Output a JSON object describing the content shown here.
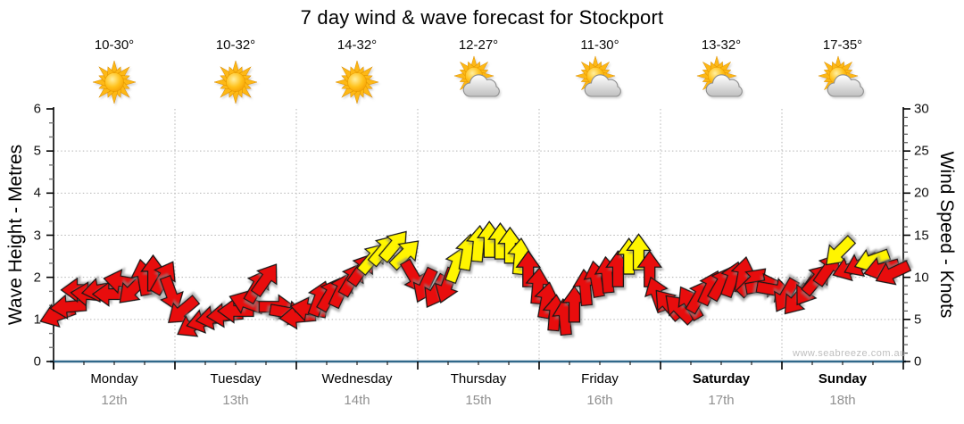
{
  "title": "7 day wind & wave forecast for Stockport",
  "watermark": "www.seabreeze.com.au",
  "days": [
    {
      "name": "Monday",
      "date": "12th",
      "temp": "10-30°",
      "icon": "sun",
      "bold": false
    },
    {
      "name": "Tuesday",
      "date": "13th",
      "temp": "10-32°",
      "icon": "sun",
      "bold": false
    },
    {
      "name": "Wednesday",
      "date": "14th",
      "temp": "14-32°",
      "icon": "sun",
      "bold": false
    },
    {
      "name": "Thursday",
      "date": "15th",
      "temp": "12-27°",
      "icon": "sun-cloud",
      "bold": false
    },
    {
      "name": "Friday",
      "date": "16th",
      "temp": "11-30°",
      "icon": "sun-cloud",
      "bold": false
    },
    {
      "name": "Saturday",
      "date": "17th",
      "temp": "13-32°",
      "icon": "sun-cloud",
      "bold": true
    },
    {
      "name": "Sunday",
      "date": "18th",
      "temp": "17-35°",
      "icon": "sun-cloud",
      "bold": true
    }
  ],
  "left_axis": {
    "label": "Wave Height - Metres",
    "range": [
      0,
      6
    ],
    "major_ticks": [
      0,
      1,
      2,
      3,
      4,
      5,
      6
    ]
  },
  "right_axis": {
    "label": "Wind Speed - Knots",
    "range": [
      0,
      30
    ],
    "major_ticks": [
      0,
      5,
      10,
      15,
      20,
      25,
      30
    ]
  },
  "colors": {
    "arrow_red": "#e8100c",
    "arrow_yellow": "#fff500",
    "arrow_outline": "#141414",
    "baseline_blue": "#31688a",
    "axis_black": "#000000",
    "grid_gray": "#b5b5b5",
    "date_gray": "#909090",
    "watermark_gray": "#bebebe"
  },
  "chart_data": {
    "type": "wind_arrow_timeseries",
    "x_unit": "days (0 = start Monday 12th, 7 = end Sunday 18th)",
    "y_unit": "knots (right axis; left axis metres = knots/5)",
    "ylim_knots": [
      0,
      30
    ],
    "ylim_metres": [
      0,
      6
    ],
    "grid": "dotted horizontal each metre, dotted vertical each day boundary",
    "color_coding": {
      "r": "red arrows ~<12 kn",
      "y": "yellow arrows ~12-15 kn"
    },
    "dir_note": "dir = direction arrow points, degrees clockwise from up/north",
    "points": [
      {
        "t": 0.03,
        "kn": 5.5,
        "dir": 250,
        "c": "r"
      },
      {
        "t": 0.12,
        "kn": 6.5,
        "dir": 265,
        "c": "r"
      },
      {
        "t": 0.21,
        "kn": 8.5,
        "dir": 270,
        "c": "r"
      },
      {
        "t": 0.29,
        "kn": 8.0,
        "dir": 275,
        "c": "r"
      },
      {
        "t": 0.38,
        "kn": 8.5,
        "dir": 260,
        "c": "r"
      },
      {
        "t": 0.47,
        "kn": 8.0,
        "dir": 270,
        "c": "r"
      },
      {
        "t": 0.56,
        "kn": 9.5,
        "dir": 280,
        "c": "r"
      },
      {
        "t": 0.65,
        "kn": 8.5,
        "dir": 225,
        "c": "r"
      },
      {
        "t": 0.74,
        "kn": 10.0,
        "dir": 350,
        "c": "r"
      },
      {
        "t": 0.82,
        "kn": 10.5,
        "dir": 0,
        "c": "r"
      },
      {
        "t": 0.91,
        "kn": 10.0,
        "dir": 30,
        "c": "r"
      },
      {
        "t": 0.97,
        "kn": 8.0,
        "dir": 160,
        "c": "r"
      },
      {
        "t": 1.06,
        "kn": 6.0,
        "dir": 230,
        "c": "r"
      },
      {
        "t": 1.15,
        "kn": 4.3,
        "dir": 240,
        "c": "r"
      },
      {
        "t": 1.24,
        "kn": 4.8,
        "dir": 255,
        "c": "r"
      },
      {
        "t": 1.32,
        "kn": 5.2,
        "dir": 260,
        "c": "r"
      },
      {
        "t": 1.41,
        "kn": 5.5,
        "dir": 265,
        "c": "r"
      },
      {
        "t": 1.5,
        "kn": 6.0,
        "dir": 270,
        "c": "r"
      },
      {
        "t": 1.59,
        "kn": 7.0,
        "dir": 290,
        "c": "r"
      },
      {
        "t": 1.68,
        "kn": 9.0,
        "dir": 30,
        "c": "r"
      },
      {
        "t": 1.75,
        "kn": 9.8,
        "dir": 35,
        "c": "r"
      },
      {
        "t": 1.84,
        "kn": 6.5,
        "dir": 90,
        "c": "r"
      },
      {
        "t": 1.93,
        "kn": 5.8,
        "dir": 100,
        "c": "r"
      },
      {
        "t": 2.01,
        "kn": 5.3,
        "dir": 265,
        "c": "r"
      },
      {
        "t": 2.1,
        "kn": 6.2,
        "dir": 280,
        "c": "r"
      },
      {
        "t": 2.19,
        "kn": 7.5,
        "dir": 20,
        "c": "r"
      },
      {
        "t": 2.28,
        "kn": 8.0,
        "dir": 30,
        "c": "r"
      },
      {
        "t": 2.37,
        "kn": 8.5,
        "dir": 25,
        "c": "r"
      },
      {
        "t": 2.46,
        "kn": 9.8,
        "dir": 30,
        "c": "r"
      },
      {
        "t": 2.54,
        "kn": 11.0,
        "dir": 35,
        "c": "r"
      },
      {
        "t": 2.63,
        "kn": 12.3,
        "dir": 40,
        "c": "y"
      },
      {
        "t": 2.72,
        "kn": 13.3,
        "dir": 40,
        "c": "y"
      },
      {
        "t": 2.81,
        "kn": 13.8,
        "dir": 40,
        "c": "y"
      },
      {
        "t": 2.9,
        "kn": 12.8,
        "dir": 45,
        "c": "y"
      },
      {
        "t": 2.97,
        "kn": 10.0,
        "dir": 150,
        "c": "r"
      },
      {
        "t": 3.06,
        "kn": 9.0,
        "dir": 205,
        "c": "r"
      },
      {
        "t": 3.15,
        "kn": 8.3,
        "dir": 210,
        "c": "r"
      },
      {
        "t": 3.24,
        "kn": 9.0,
        "dir": 200,
        "c": "r"
      },
      {
        "t": 3.32,
        "kn": 11.5,
        "dir": 20,
        "c": "y"
      },
      {
        "t": 3.41,
        "kn": 13.0,
        "dir": 10,
        "c": "y"
      },
      {
        "t": 3.5,
        "kn": 14.0,
        "dir": 5,
        "c": "y"
      },
      {
        "t": 3.59,
        "kn": 14.5,
        "dir": 0,
        "c": "y"
      },
      {
        "t": 3.68,
        "kn": 14.3,
        "dir": 0,
        "c": "y"
      },
      {
        "t": 3.76,
        "kn": 13.8,
        "dir": 0,
        "c": "y"
      },
      {
        "t": 3.84,
        "kn": 12.5,
        "dir": 5,
        "c": "y"
      },
      {
        "t": 3.91,
        "kn": 11.0,
        "dir": 0,
        "c": "r"
      },
      {
        "t": 3.99,
        "kn": 9.0,
        "dir": 5,
        "c": "r"
      },
      {
        "t": 4.06,
        "kn": 7.3,
        "dir": 10,
        "c": "r"
      },
      {
        "t": 4.13,
        "kn": 5.8,
        "dir": 5,
        "c": "r"
      },
      {
        "t": 4.21,
        "kn": 5.3,
        "dir": 355,
        "c": "r"
      },
      {
        "t": 4.29,
        "kn": 6.8,
        "dir": 0,
        "c": "r"
      },
      {
        "t": 4.38,
        "kn": 8.8,
        "dir": 355,
        "c": "r"
      },
      {
        "t": 4.47,
        "kn": 9.8,
        "dir": 350,
        "c": "r"
      },
      {
        "t": 4.56,
        "kn": 10.3,
        "dir": 355,
        "c": "r"
      },
      {
        "t": 4.65,
        "kn": 11.0,
        "dir": 0,
        "c": "r"
      },
      {
        "t": 4.74,
        "kn": 12.5,
        "dir": 0,
        "c": "y"
      },
      {
        "t": 4.82,
        "kn": 13.0,
        "dir": 0,
        "c": "y"
      },
      {
        "t": 4.91,
        "kn": 11.0,
        "dir": 0,
        "c": "r"
      },
      {
        "t": 4.97,
        "kn": 8.0,
        "dir": 340,
        "c": "r"
      },
      {
        "t": 5.06,
        "kn": 6.8,
        "dir": 320,
        "c": "r"
      },
      {
        "t": 5.15,
        "kn": 6.3,
        "dir": 315,
        "c": "r"
      },
      {
        "t": 5.24,
        "kn": 7.0,
        "dir": 330,
        "c": "r"
      },
      {
        "t": 5.32,
        "kn": 7.8,
        "dir": 30,
        "c": "r"
      },
      {
        "t": 5.41,
        "kn": 8.8,
        "dir": 25,
        "c": "r"
      },
      {
        "t": 5.5,
        "kn": 9.3,
        "dir": 30,
        "c": "r"
      },
      {
        "t": 5.59,
        "kn": 9.8,
        "dir": 20,
        "c": "r"
      },
      {
        "t": 5.68,
        "kn": 10.3,
        "dir": 10,
        "c": "r"
      },
      {
        "t": 5.76,
        "kn": 9.5,
        "dir": 45,
        "c": "r"
      },
      {
        "t": 5.85,
        "kn": 9.0,
        "dir": 80,
        "c": "r"
      },
      {
        "t": 5.94,
        "kn": 8.5,
        "dir": 100,
        "c": "r"
      },
      {
        "t": 6.03,
        "kn": 7.8,
        "dir": 210,
        "c": "r"
      },
      {
        "t": 6.12,
        "kn": 7.3,
        "dir": 220,
        "c": "r"
      },
      {
        "t": 6.21,
        "kn": 8.5,
        "dir": 215,
        "c": "r"
      },
      {
        "t": 6.29,
        "kn": 9.8,
        "dir": 40,
        "c": "r"
      },
      {
        "t": 6.38,
        "kn": 11.0,
        "dir": 35,
        "c": "r"
      },
      {
        "t": 6.47,
        "kn": 13.0,
        "dir": 225,
        "c": "y"
      },
      {
        "t": 6.56,
        "kn": 11.0,
        "dir": 250,
        "c": "r"
      },
      {
        "t": 6.65,
        "kn": 11.5,
        "dir": 245,
        "c": "r"
      },
      {
        "t": 6.74,
        "kn": 12.0,
        "dir": 250,
        "c": "y"
      },
      {
        "t": 6.82,
        "kn": 11.0,
        "dir": 255,
        "c": "r"
      },
      {
        "t": 6.91,
        "kn": 10.5,
        "dir": 245,
        "c": "r"
      }
    ]
  }
}
